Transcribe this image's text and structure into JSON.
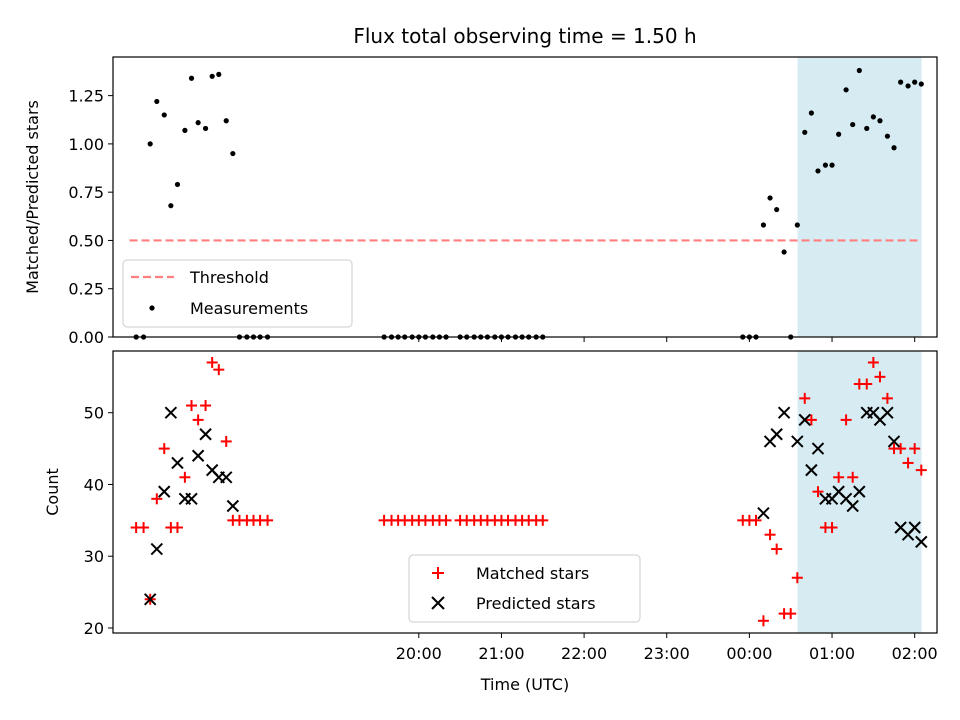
{
  "chart_data": [
    {
      "type": "scatter",
      "title": "Flux total observing time = 1.50 h",
      "xlabel": "",
      "ylabel": "Matched/Predicted stars",
      "x_axis": "time (hours relative to 00:00 UTC)",
      "xlim": [
        -7.7,
        2.27
      ],
      "ylim": [
        0.0,
        1.45
      ],
      "xtick_labels": [
        "20:00",
        "21:00",
        "22:00",
        "23:00",
        "00:00",
        "01:00",
        "02:00"
      ],
      "ytick_labels": [
        "0.00",
        "0.25",
        "0.50",
        "0.75",
        "1.00",
        "1.25"
      ],
      "shaded_region": {
        "x": [
          0.583,
          2.083
        ],
        "color": "#add8e6"
      },
      "threshold": {
        "name": "Threshold",
        "y": 0.5,
        "x": [
          -7.5,
          2.083
        ],
        "color": "#ff7f7f",
        "style": "dashed"
      },
      "series": [
        {
          "name": "Measurements",
          "color": "#000000",
          "marker": "dot",
          "points": [
            [
              -7.42,
              0.0
            ],
            [
              -7.33,
              0.0
            ],
            [
              -7.25,
              1.0
            ],
            [
              -7.17,
              1.22
            ],
            [
              -7.08,
              1.15
            ],
            [
              -7.0,
              0.68
            ],
            [
              -6.92,
              0.79
            ],
            [
              -6.83,
              1.07
            ],
            [
              -6.75,
              1.34
            ],
            [
              -6.67,
              1.11
            ],
            [
              -6.58,
              1.08
            ],
            [
              -6.5,
              1.35
            ],
            [
              -6.42,
              1.36
            ],
            [
              -6.33,
              1.12
            ],
            [
              -6.25,
              0.95
            ],
            [
              -6.17,
              0.0
            ],
            [
              -6.08,
              0.0
            ],
            [
              -6.0,
              0.0
            ],
            [
              -5.92,
              0.0
            ],
            [
              -5.83,
              0.0
            ],
            [
              -4.42,
              0.0
            ],
            [
              -4.33,
              0.0
            ],
            [
              -4.25,
              0.0
            ],
            [
              -4.17,
              0.0
            ],
            [
              -4.08,
              0.0
            ],
            [
              -4.0,
              0.0
            ],
            [
              -3.92,
              0.0
            ],
            [
              -3.83,
              0.0
            ],
            [
              -3.75,
              0.0
            ],
            [
              -3.67,
              0.0
            ],
            [
              -3.5,
              0.0
            ],
            [
              -3.42,
              0.0
            ],
            [
              -3.33,
              0.0
            ],
            [
              -3.25,
              0.0
            ],
            [
              -3.17,
              0.0
            ],
            [
              -3.08,
              0.0
            ],
            [
              -3.0,
              0.0
            ],
            [
              -2.92,
              0.0
            ],
            [
              -2.83,
              0.0
            ],
            [
              -2.75,
              0.0
            ],
            [
              -2.67,
              0.0
            ],
            [
              -2.58,
              0.0
            ],
            [
              -2.5,
              0.0
            ],
            [
              -0.08,
              0.0
            ],
            [
              0.0,
              0.0
            ],
            [
              0.08,
              0.0
            ],
            [
              0.17,
              0.58
            ],
            [
              0.25,
              0.72
            ],
            [
              0.33,
              0.66
            ],
            [
              0.42,
              0.44
            ],
            [
              0.5,
              0.0
            ],
            [
              0.58,
              0.58
            ],
            [
              0.67,
              1.06
            ],
            [
              0.75,
              1.16
            ],
            [
              0.83,
              0.86
            ],
            [
              0.92,
              0.89
            ],
            [
              1.0,
              0.89
            ],
            [
              1.08,
              1.05
            ],
            [
              1.17,
              1.28
            ],
            [
              1.25,
              1.1
            ],
            [
              1.33,
              1.38
            ],
            [
              1.42,
              1.08
            ],
            [
              1.5,
              1.14
            ],
            [
              1.58,
              1.12
            ],
            [
              1.67,
              1.04
            ],
            [
              1.75,
              0.98
            ],
            [
              1.83,
              1.32
            ],
            [
              1.92,
              1.3
            ],
            [
              2.0,
              1.32
            ],
            [
              2.08,
              1.31
            ]
          ]
        }
      ],
      "legend": [
        "Threshold",
        "Measurements"
      ],
      "legend_position": "lower-left"
    },
    {
      "type": "scatter",
      "title": "",
      "xlabel": "Time (UTC)",
      "ylabel": "Count",
      "xlim": [
        -7.7,
        2.27
      ],
      "ylim": [
        19.3,
        58.6
      ],
      "xtick_labels": [
        "20:00",
        "21:00",
        "22:00",
        "23:00",
        "00:00",
        "01:00",
        "02:00"
      ],
      "ytick_labels": [
        "20",
        "30",
        "40",
        "50"
      ],
      "shaded_region": {
        "x": [
          0.583,
          2.083
        ],
        "color": "#add8e6"
      },
      "series": [
        {
          "name": "Matched stars",
          "color": "#ff0000",
          "marker": "plus",
          "points": [
            [
              -7.42,
              34
            ],
            [
              -7.33,
              34
            ],
            [
              -7.25,
              24
            ],
            [
              -7.17,
              38
            ],
            [
              -7.08,
              45
            ],
            [
              -7.0,
              34
            ],
            [
              -6.92,
              34
            ],
            [
              -6.83,
              41
            ],
            [
              -6.75,
              51
            ],
            [
              -6.67,
              49
            ],
            [
              -6.58,
              51
            ],
            [
              -6.5,
              57
            ],
            [
              -6.42,
              56
            ],
            [
              -6.33,
              46
            ],
            [
              -6.25,
              35
            ],
            [
              -6.17,
              35
            ],
            [
              -6.08,
              35
            ],
            [
              -6.0,
              35
            ],
            [
              -5.92,
              35
            ],
            [
              -5.83,
              35
            ],
            [
              -4.42,
              35
            ],
            [
              -4.33,
              35
            ],
            [
              -4.25,
              35
            ],
            [
              -4.17,
              35
            ],
            [
              -4.08,
              35
            ],
            [
              -4.0,
              35
            ],
            [
              -3.92,
              35
            ],
            [
              -3.83,
              35
            ],
            [
              -3.75,
              35
            ],
            [
              -3.67,
              35
            ],
            [
              -3.5,
              35
            ],
            [
              -3.42,
              35
            ],
            [
              -3.33,
              35
            ],
            [
              -3.25,
              35
            ],
            [
              -3.17,
              35
            ],
            [
              -3.08,
              35
            ],
            [
              -3.0,
              35
            ],
            [
              -2.92,
              35
            ],
            [
              -2.83,
              35
            ],
            [
              -2.75,
              35
            ],
            [
              -2.67,
              35
            ],
            [
              -2.58,
              35
            ],
            [
              -2.5,
              35
            ],
            [
              -0.08,
              35
            ],
            [
              0.0,
              35
            ],
            [
              0.08,
              35
            ],
            [
              0.17,
              21
            ],
            [
              0.25,
              33
            ],
            [
              0.33,
              31
            ],
            [
              0.42,
              22
            ],
            [
              0.5,
              22
            ],
            [
              0.58,
              27
            ],
            [
              0.67,
              52
            ],
            [
              0.75,
              49
            ],
            [
              0.83,
              39
            ],
            [
              0.92,
              34
            ],
            [
              1.0,
              34
            ],
            [
              1.08,
              41
            ],
            [
              1.17,
              49
            ],
            [
              1.25,
              41
            ],
            [
              1.33,
              54
            ],
            [
              1.42,
              54
            ],
            [
              1.5,
              57
            ],
            [
              1.58,
              55
            ],
            [
              1.67,
              52
            ],
            [
              1.75,
              45
            ],
            [
              1.83,
              45
            ],
            [
              1.92,
              43
            ],
            [
              2.0,
              45
            ],
            [
              2.08,
              42
            ]
          ]
        },
        {
          "name": "Predicted stars",
          "color": "#000000",
          "marker": "cross",
          "points": [
            [
              -7.25,
              24
            ],
            [
              -7.17,
              31
            ],
            [
              -7.08,
              39
            ],
            [
              -7.0,
              50
            ],
            [
              -6.92,
              43
            ],
            [
              -6.83,
              38
            ],
            [
              -6.75,
              38
            ],
            [
              -6.67,
              44
            ],
            [
              -6.58,
              47
            ],
            [
              -6.5,
              42
            ],
            [
              -6.42,
              41
            ],
            [
              -6.33,
              41
            ],
            [
              -6.25,
              37
            ],
            [
              0.17,
              36
            ],
            [
              0.25,
              46
            ],
            [
              0.33,
              47
            ],
            [
              0.42,
              50
            ],
            [
              0.58,
              46
            ],
            [
              0.67,
              49
            ],
            [
              0.75,
              42
            ],
            [
              0.83,
              45
            ],
            [
              0.92,
              38
            ],
            [
              1.0,
              38
            ],
            [
              1.08,
              39
            ],
            [
              1.17,
              38
            ],
            [
              1.25,
              37
            ],
            [
              1.33,
              39
            ],
            [
              1.42,
              50
            ],
            [
              1.5,
              50
            ],
            [
              1.58,
              49
            ],
            [
              1.67,
              50
            ],
            [
              1.75,
              46
            ],
            [
              1.83,
              34
            ],
            [
              1.92,
              33
            ],
            [
              2.0,
              34
            ],
            [
              2.08,
              32
            ]
          ]
        }
      ],
      "legend": [
        "Matched stars",
        "Predicted stars"
      ],
      "legend_position": "lower-center"
    }
  ]
}
